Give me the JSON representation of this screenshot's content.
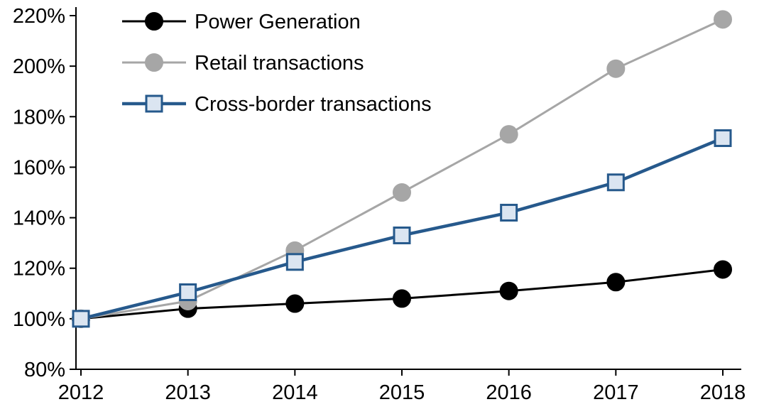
{
  "chart_data": {
    "type": "line",
    "title": "",
    "xlabel": "",
    "ylabel": "",
    "grid": false,
    "legend_position": "top-left",
    "x": [
      2012,
      2013,
      2014,
      2015,
      2016,
      2017,
      2018
    ],
    "xtick_labels": [
      "2012",
      "2013",
      "2014",
      "2015",
      "2016",
      "2017",
      "2018"
    ],
    "ylim": [
      80,
      220
    ],
    "ytick_step": 20,
    "yticks": [
      80,
      100,
      120,
      140,
      160,
      180,
      200,
      220
    ],
    "ytick_labels": [
      "80%",
      "100%",
      "120%",
      "140%",
      "160%",
      "180%",
      "200%",
      "220%"
    ],
    "series": [
      {
        "name": "Power Generation",
        "color": "#000000",
        "marker": "circle",
        "marker_fill": "#000000",
        "line_width": 3,
        "values": [
          100,
          104,
          106,
          108,
          111,
          114.5,
          119.5
        ]
      },
      {
        "name": "Retail transactions",
        "color": "#a6a6a6",
        "marker": "circle",
        "marker_fill": "#a6a6a6",
        "line_width": 3,
        "values": [
          100,
          107,
          127,
          150,
          173,
          199,
          218.5
        ]
      },
      {
        "name": "Cross-border transactions",
        "color": "#26598c",
        "marker": "square",
        "marker_fill": "#dbe5f1",
        "line_width": 4.5,
        "values": [
          100,
          110.5,
          122.5,
          133,
          142,
          154,
          171.5
        ]
      }
    ]
  }
}
